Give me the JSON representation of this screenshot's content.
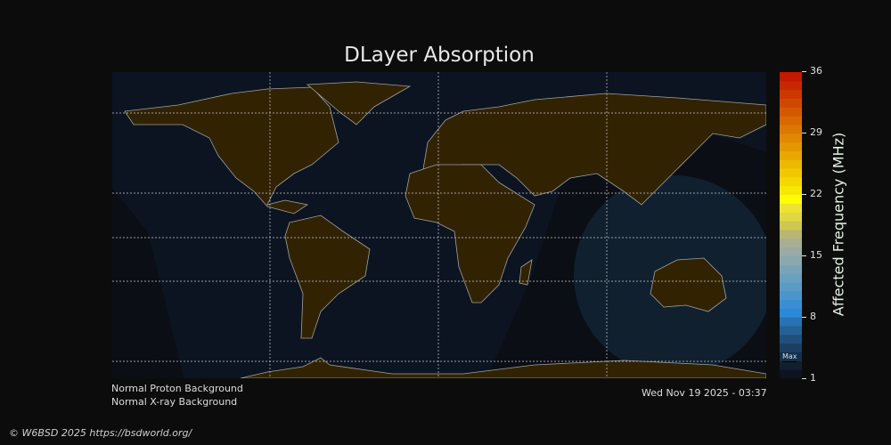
{
  "title": "DLayer Absorption",
  "status": {
    "proton": "Normal Proton Background",
    "xray": "Normal X-ray Background"
  },
  "timestamp": "Wed Nov 19 2025 - 03:37",
  "copyright": "© W6BSD 2025 https://bsdworld.org/",
  "colorbar": {
    "label": "Affected Frequency (MHz)",
    "range": [
      1,
      36
    ],
    "ticks": [
      "36",
      "29",
      "22",
      "15",
      "8",
      "1"
    ],
    "max_marker": "Max",
    "colors": [
      "#0d1320",
      "#10202f",
      "#14304a",
      "#1a3f62",
      "#1f4f7d",
      "#236197",
      "#2773b3",
      "#2c88d8",
      "#3a8fd4",
      "#4a95cc",
      "#5a9bc6",
      "#6aa0bf",
      "#7aa4b6",
      "#8aa8ae",
      "#9aaaa4",
      "#a8ae90",
      "#b8b670",
      "#cec850",
      "#e0d840",
      "#eee430",
      "#ffff00",
      "#f8e800",
      "#f4d800",
      "#f0c800",
      "#ecb800",
      "#e8a800",
      "#e49800",
      "#e08800",
      "#dc7800",
      "#d86800",
      "#d45800",
      "#d04800",
      "#cc3800",
      "#c82800",
      "#c41800"
    ]
  },
  "map": {
    "land_color": "#312302",
    "ocean_color": "#0c1421",
    "night_color": "#0b0e15",
    "absorption_color": "#10202f",
    "coast_color": "#a0a0a0",
    "grid_color": "#cccccc"
  }
}
